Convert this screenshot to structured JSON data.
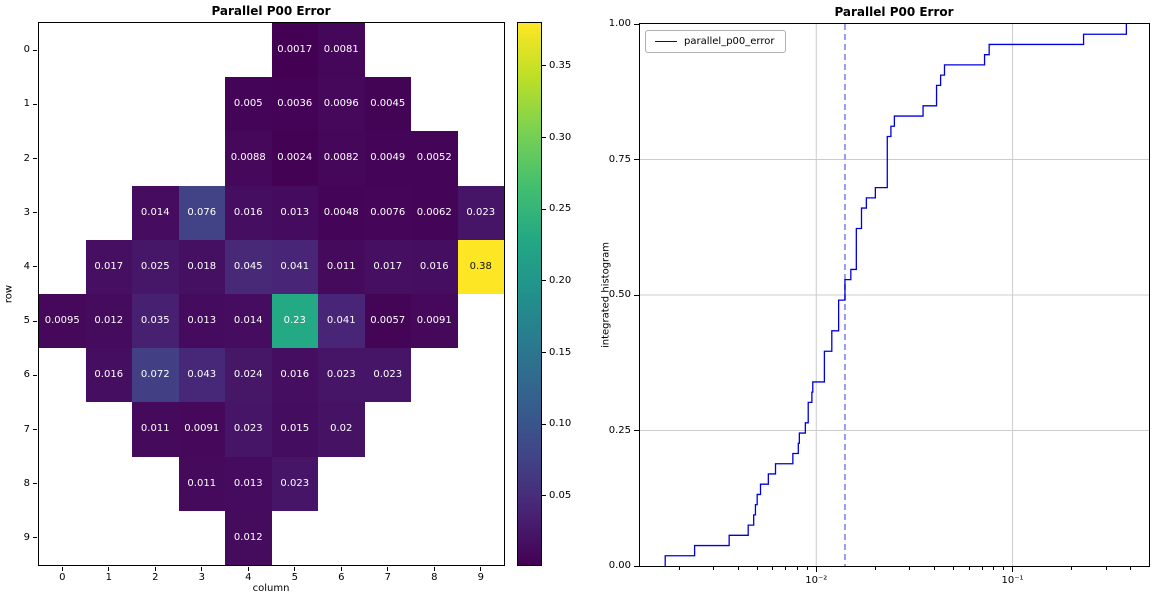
{
  "chart_data": [
    {
      "type": "heatmap",
      "title": "Parallel P00 Error",
      "xlabel": "column",
      "ylabel": "row",
      "x_tick_labels": [
        "0",
        "1",
        "2",
        "3",
        "4",
        "5",
        "6",
        "7",
        "8",
        "9"
      ],
      "y_tick_labels": [
        "0",
        "1",
        "2",
        "3",
        "4",
        "5",
        "6",
        "7",
        "8",
        "9"
      ],
      "colormap": "viridis",
      "color_scale": {
        "vmin": 0.0017,
        "vmax": 0.38
      },
      "colorbar_tick_labels": [
        "0.05",
        "0.10",
        "0.15",
        "0.20",
        "0.25",
        "0.30",
        "0.35"
      ],
      "cells": [
        {
          "row": 0,
          "col": 5,
          "value": "0.0017"
        },
        {
          "row": 0,
          "col": 6,
          "value": "0.0081"
        },
        {
          "row": 1,
          "col": 4,
          "value": "0.005"
        },
        {
          "row": 1,
          "col": 5,
          "value": "0.0036"
        },
        {
          "row": 1,
          "col": 6,
          "value": "0.0096"
        },
        {
          "row": 1,
          "col": 7,
          "value": "0.0045"
        },
        {
          "row": 2,
          "col": 4,
          "value": "0.0088"
        },
        {
          "row": 2,
          "col": 5,
          "value": "0.0024"
        },
        {
          "row": 2,
          "col": 6,
          "value": "0.0082"
        },
        {
          "row": 2,
          "col": 7,
          "value": "0.0049"
        },
        {
          "row": 2,
          "col": 8,
          "value": "0.0052"
        },
        {
          "row": 3,
          "col": 2,
          "value": "0.014"
        },
        {
          "row": 3,
          "col": 3,
          "value": "0.076"
        },
        {
          "row": 3,
          "col": 4,
          "value": "0.016"
        },
        {
          "row": 3,
          "col": 5,
          "value": "0.013"
        },
        {
          "row": 3,
          "col": 6,
          "value": "0.0048"
        },
        {
          "row": 3,
          "col": 7,
          "value": "0.0076"
        },
        {
          "row": 3,
          "col": 8,
          "value": "0.0062"
        },
        {
          "row": 3,
          "col": 9,
          "value": "0.023"
        },
        {
          "row": 4,
          "col": 1,
          "value": "0.017"
        },
        {
          "row": 4,
          "col": 2,
          "value": "0.025"
        },
        {
          "row": 4,
          "col": 3,
          "value": "0.018"
        },
        {
          "row": 4,
          "col": 4,
          "value": "0.045"
        },
        {
          "row": 4,
          "col": 5,
          "value": "0.041"
        },
        {
          "row": 4,
          "col": 6,
          "value": "0.011"
        },
        {
          "row": 4,
          "col": 7,
          "value": "0.017"
        },
        {
          "row": 4,
          "col": 8,
          "value": "0.016"
        },
        {
          "row": 4,
          "col": 9,
          "value": "0.38"
        },
        {
          "row": 5,
          "col": 0,
          "value": "0.0095"
        },
        {
          "row": 5,
          "col": 1,
          "value": "0.012"
        },
        {
          "row": 5,
          "col": 2,
          "value": "0.035"
        },
        {
          "row": 5,
          "col": 3,
          "value": "0.013"
        },
        {
          "row": 5,
          "col": 4,
          "value": "0.014"
        },
        {
          "row": 5,
          "col": 5,
          "value": "0.23"
        },
        {
          "row": 5,
          "col": 6,
          "value": "0.041"
        },
        {
          "row": 5,
          "col": 7,
          "value": "0.0057"
        },
        {
          "row": 5,
          "col": 8,
          "value": "0.0091"
        },
        {
          "row": 6,
          "col": 1,
          "value": "0.016"
        },
        {
          "row": 6,
          "col": 2,
          "value": "0.072"
        },
        {
          "row": 6,
          "col": 3,
          "value": "0.043"
        },
        {
          "row": 6,
          "col": 4,
          "value": "0.024"
        },
        {
          "row": 6,
          "col": 5,
          "value": "0.016"
        },
        {
          "row": 6,
          "col": 6,
          "value": "0.023"
        },
        {
          "row": 6,
          "col": 7,
          "value": "0.023"
        },
        {
          "row": 7,
          "col": 2,
          "value": "0.011"
        },
        {
          "row": 7,
          "col": 3,
          "value": "0.0091"
        },
        {
          "row": 7,
          "col": 4,
          "value": "0.023"
        },
        {
          "row": 7,
          "col": 5,
          "value": "0.015"
        },
        {
          "row": 7,
          "col": 6,
          "value": "0.02"
        },
        {
          "row": 8,
          "col": 3,
          "value": "0.011"
        },
        {
          "row": 8,
          "col": 4,
          "value": "0.013"
        },
        {
          "row": 8,
          "col": 5,
          "value": "0.023"
        },
        {
          "row": 9,
          "col": 4,
          "value": "0.012"
        }
      ]
    },
    {
      "type": "line",
      "subtype": "cumulative-step",
      "title": "Parallel P00 Error",
      "xlabel": "",
      "ylabel": "integrated histogram",
      "legend": [
        {
          "label": "parallel_p00_error",
          "color": "#0000dd"
        }
      ],
      "legend_position": "upper-left",
      "x_scale": "log",
      "xlim": [
        0.001265,
        0.4955
      ],
      "ylim": [
        0,
        1
      ],
      "grid": true,
      "grid_color": "#cccccc",
      "y_tick_labels": [
        "0.00",
        "0.25",
        "0.50",
        "0.75",
        "1.00"
      ],
      "x_major_ticks": [
        {
          "value": 0.01,
          "label": "10⁻²"
        },
        {
          "value": 0.1,
          "label": "10⁻¹"
        }
      ],
      "vline": {
        "value": 0.014,
        "style": "dashed",
        "color": "#9a9cf0"
      },
      "values": [
        0.0017,
        0.0081,
        0.005,
        0.0036,
        0.0096,
        0.0045,
        0.0088,
        0.0024,
        0.0082,
        0.0049,
        0.0052,
        0.014,
        0.076,
        0.016,
        0.013,
        0.0048,
        0.0076,
        0.0062,
        0.023,
        0.017,
        0.025,
        0.018,
        0.045,
        0.041,
        0.011,
        0.017,
        0.016,
        0.38,
        0.0095,
        0.012,
        0.035,
        0.013,
        0.014,
        0.23,
        0.041,
        0.0057,
        0.0091,
        0.016,
        0.072,
        0.043,
        0.024,
        0.016,
        0.023,
        0.023,
        0.011,
        0.0091,
        0.023,
        0.015,
        0.02,
        0.011,
        0.013,
        0.023,
        0.012
      ]
    }
  ]
}
